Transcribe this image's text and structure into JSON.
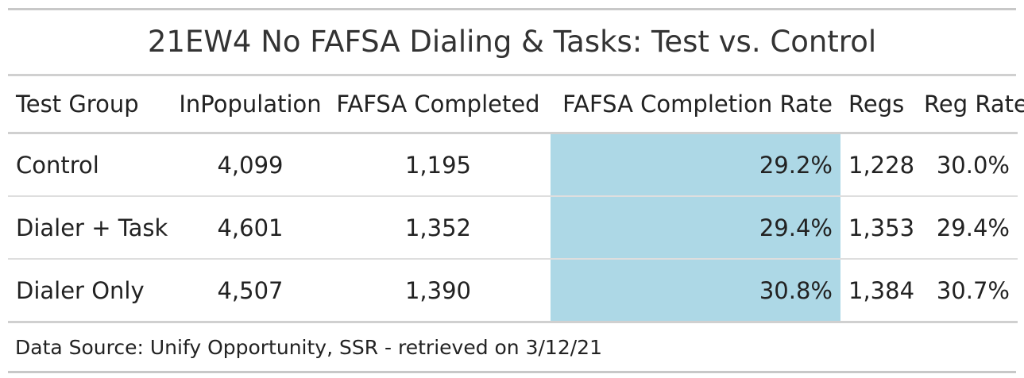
{
  "chart_data": {
    "type": "table",
    "title": "21EW4 No FAFSA Dialing & Tasks: Test vs. Control",
    "columns": [
      "Test Group",
      "InPopulation",
      "FAFSA Completed",
      "FAFSA Completion Rate",
      "Regs",
      "Reg Rate"
    ],
    "rows": [
      {
        "group": "Control",
        "in_population": "4,099",
        "fafsa_completed": "1,195",
        "fafsa_completion_rate": "29.2%",
        "regs": "1,228",
        "reg_rate": "30.0%"
      },
      {
        "group": "Dialer + Task",
        "in_population": "4,601",
        "fafsa_completed": "1,352",
        "fafsa_completion_rate": "29.4%",
        "regs": "1,353",
        "reg_rate": "29.4%"
      },
      {
        "group": "Dialer Only",
        "in_population": "4,507",
        "fafsa_completed": "1,390",
        "fafsa_completion_rate": "30.8%",
        "regs": "1,384",
        "reg_rate": "30.7%"
      }
    ],
    "highlight_column": "FAFSA Completion Rate",
    "highlight_color": "#add8e6",
    "source": "Data Source: Unify Opportunity, SSR - retrieved on 3/12/21"
  }
}
